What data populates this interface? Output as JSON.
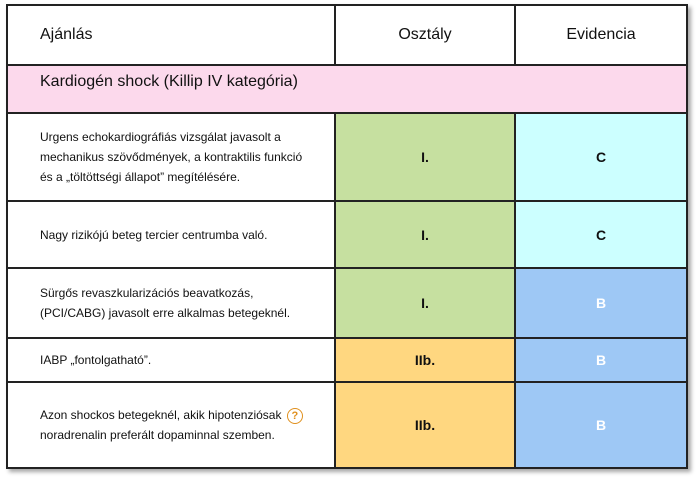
{
  "headers": {
    "recommendation": "Ajánlás",
    "class": "Osztály",
    "evidence": "Evidencia"
  },
  "section_title": "Kardiogén shock (Killip IV kategória)",
  "rows": [
    {
      "text_lines": [
        "Urgens echokardiográfiás vizsgálat javasolt a",
        "mechanikus szövődmények, a kontraktilis funkció",
        "és a „töltöttségi állapot” megítélésére."
      ],
      "class": "I.",
      "evidence": "C"
    },
    {
      "text_lines": [
        "Nagy rizikójú beteg tercier centrumba való."
      ],
      "class": "I.",
      "evidence": "C"
    },
    {
      "text_lines": [
        "Sürgős revaszkularizációs beavatkozás,",
        "(PCI/CABG) javasolt erre alkalmas betegeknél."
      ],
      "class": "I.",
      "evidence": "B"
    },
    {
      "text_lines": [
        "IABP „fontolgatható”."
      ],
      "class": "IIb.",
      "evidence": "B"
    },
    {
      "text_lines": [
        "Azon shockos betegeknél, akik hipotenziósak",
        "noradrenalin preferált dopaminnal szemben."
      ],
      "question_mark": "?",
      "class": "IIb.",
      "evidence": "B"
    }
  ],
  "colors": {
    "section_bg": "#fcd9ec",
    "class_i": "#c6e0a0",
    "class_iib": "#ffd780",
    "evidence_c": "#ccffff",
    "evidence_b": "#9ec8f5",
    "question_icon": "#e0901e"
  }
}
